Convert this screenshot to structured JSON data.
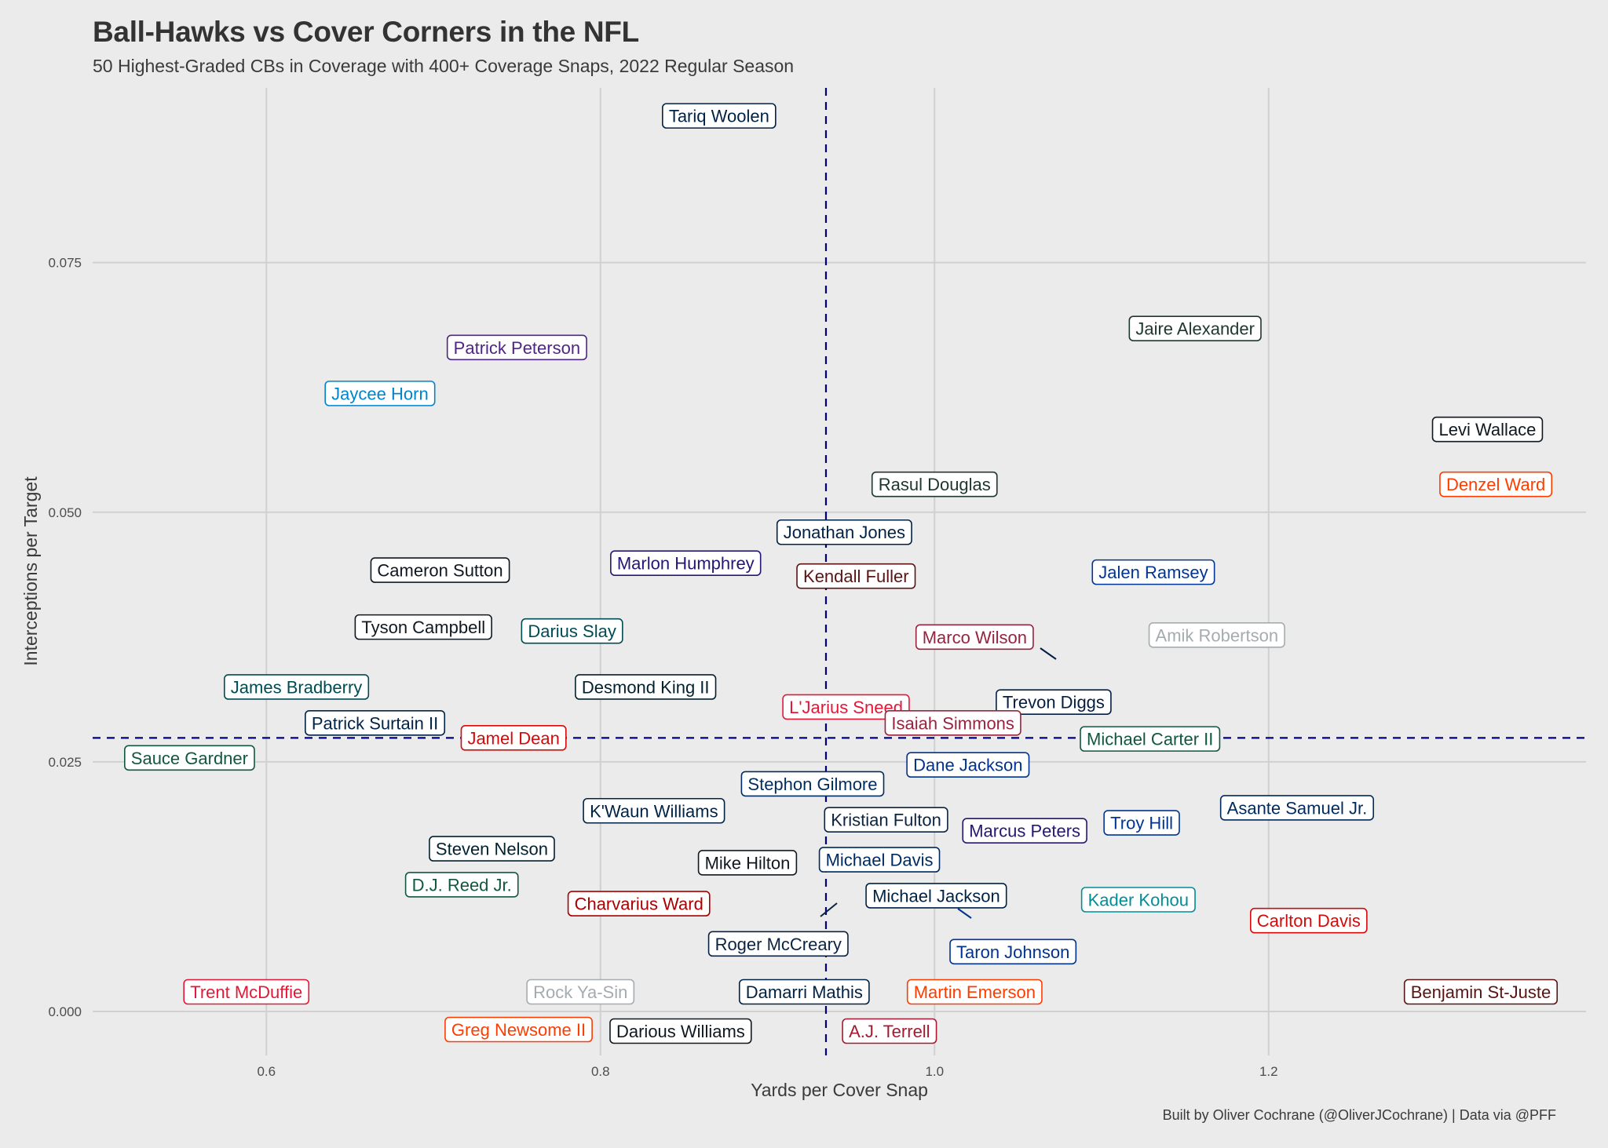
{
  "header": {
    "title": "Ball-Hawks vs Cover Corners in the NFL",
    "subtitle": "50 Highest-Graded CBs in Coverage with 400+ Coverage Snaps, 2022 Regular Season"
  },
  "footer": {
    "caption": "Built by Oliver Cochrane (@OliverJCochrane) | Data via @PFF"
  },
  "chart_data": {
    "type": "scatter",
    "title": "Ball-Hawks vs Cover Corners in the NFL",
    "subtitle": "50 Highest-Graded CBs in Coverage with 400+ Coverage Snaps, 2022 Regular Season",
    "xlabel": "Yards per Cover Snap",
    "ylabel": "Interceptions per Target",
    "xlim": [
      0.496,
      1.39
    ],
    "ylim": [
      -0.0044,
      0.0925
    ],
    "x_ticks": [
      0.6,
      0.8,
      1.0,
      1.2
    ],
    "x_tick_labels": [
      "0.6",
      "0.8",
      "1.0",
      "1.2"
    ],
    "y_ticks": [
      0.0,
      0.025,
      0.05,
      0.075
    ],
    "y_tick_labels": [
      "0.000",
      "0.025",
      "0.050",
      "0.075"
    ],
    "grid": true,
    "legend": "none",
    "reference_lines": {
      "x_mean": 0.935,
      "y_mean": 0.0274,
      "color": "#00007f",
      "style": "dashed"
    },
    "points": [
      {
        "name": "Tariq Woolen",
        "x": 0.871,
        "y": 0.0897,
        "color": "#002244"
      },
      {
        "name": "Jaire Alexander",
        "x": 1.156,
        "y": 0.0684,
        "color": "#203731"
      },
      {
        "name": "Patrick Peterson",
        "x": 0.75,
        "y": 0.0665,
        "color": "#4F2683"
      },
      {
        "name": "Jaycee Horn",
        "x": 0.668,
        "y": 0.0619,
        "color": "#0085CA"
      },
      {
        "name": "Levi Wallace",
        "x": 1.331,
        "y": 0.0583,
        "color": "#101820"
      },
      {
        "name": "Rasul Douglas",
        "x": 1.0,
        "y": 0.0528,
        "color": "#203731"
      },
      {
        "name": "Denzel Ward",
        "x": 1.336,
        "y": 0.0528,
        "color": "#FF3C00"
      },
      {
        "name": "Jonathan Jones",
        "x": 0.946,
        "y": 0.048,
        "color": "#002244"
      },
      {
        "name": "Marlon Humphrey",
        "x": 0.851,
        "y": 0.0449,
        "color": "#241773"
      },
      {
        "name": "Cameron Sutton",
        "x": 0.704,
        "y": 0.0442,
        "color": "#101820"
      },
      {
        "name": "Kendall Fuller",
        "x": 0.953,
        "y": 0.0436,
        "color": "#5A1414"
      },
      {
        "name": "Jalen Ramsey",
        "x": 1.131,
        "y": 0.044,
        "color": "#003594"
      },
      {
        "name": "Tyson Campbell",
        "x": 0.694,
        "y": 0.0385,
        "color": "#101820"
      },
      {
        "name": "Darius Slay",
        "x": 0.783,
        "y": 0.0381,
        "color": "#004C54"
      },
      {
        "name": "Marco Wilson",
        "x": 1.024,
        "y": 0.0375,
        "color": "#97233F"
      },
      {
        "name": "Amik Robertson",
        "x": 1.169,
        "y": 0.0377,
        "color": "#A5ACAF"
      },
      {
        "name": "Trevon Diggs",
        "x": 1.06,
        "y": 0.035,
        "color": "#041E42"
      },
      {
        "name": "James Bradberry",
        "x": 0.618,
        "y": 0.0325,
        "color": "#004C54"
      },
      {
        "name": "Desmond King II",
        "x": 0.827,
        "y": 0.0325,
        "color": "#03202F"
      },
      {
        "name": "L'Jarius Sneed",
        "x": 0.947,
        "y": 0.0305,
        "color": "#E31837"
      },
      {
        "name": "Patrick Surtain II",
        "x": 0.665,
        "y": 0.0289,
        "color": "#002244"
      },
      {
        "name": "Isaiah Simmons",
        "x": 1.011,
        "y": 0.0289,
        "color": "#97233F"
      },
      {
        "name": "Jamel Dean",
        "x": 0.748,
        "y": 0.0274,
        "color": "#D50A0A"
      },
      {
        "name": "Michael Carter II",
        "x": 1.129,
        "y": 0.0273,
        "color": "#125740"
      },
      {
        "name": "Sauce Gardner",
        "x": 0.554,
        "y": 0.0254,
        "color": "#125740"
      },
      {
        "name": "Dane Jackson",
        "x": 1.02,
        "y": 0.0247,
        "color": "#00338D"
      },
      {
        "name": "Stephon Gilmore",
        "x": 0.927,
        "y": 0.0228,
        "color": "#002C5F"
      },
      {
        "name": "K'Waun Williams",
        "x": 0.832,
        "y": 0.0201,
        "color": "#002244"
      },
      {
        "name": "Asante Samuel Jr.",
        "x": 1.217,
        "y": 0.0204,
        "color": "#002A5E"
      },
      {
        "name": "Kristian Fulton",
        "x": 0.971,
        "y": 0.0192,
        "color": "#0C2340"
      },
      {
        "name": "Troy Hill",
        "x": 1.124,
        "y": 0.0189,
        "color": "#003594"
      },
      {
        "name": "Marcus Peters",
        "x": 1.054,
        "y": 0.0181,
        "color": "#241773"
      },
      {
        "name": "Steven Nelson",
        "x": 0.735,
        "y": 0.0163,
        "color": "#03202F"
      },
      {
        "name": "Michael Davis",
        "x": 0.967,
        "y": 0.0152,
        "color": "#002A5E"
      },
      {
        "name": "Mike Hilton",
        "x": 0.888,
        "y": 0.0149,
        "color": "#101820"
      },
      {
        "name": "D.J. Reed Jr.",
        "x": 0.717,
        "y": 0.0127,
        "color": "#125740"
      },
      {
        "name": "Michael Jackson",
        "x": 1.001,
        "y": 0.0116,
        "color": "#002244"
      },
      {
        "name": "Kader Kohou",
        "x": 1.122,
        "y": 0.0112,
        "color": "#008E97"
      },
      {
        "name": "Charvarius Ward",
        "x": 0.823,
        "y": 0.0108,
        "color": "#AA0000"
      },
      {
        "name": "Carlton Davis",
        "x": 1.224,
        "y": 0.0091,
        "color": "#D50A0A"
      },
      {
        "name": "Roger McCreary",
        "x": 0.945,
        "y": 0.0107,
        "color": "#0C2340"
      },
      {
        "name": "Taron Johnson",
        "x": 1.015,
        "y": 0.01,
        "color": "#00338D"
      },
      {
        "name": "Trent McDuffie",
        "x": 0.588,
        "y": 0.0,
        "color": "#E31837"
      },
      {
        "name": "Rock Ya-Sin",
        "x": 0.788,
        "y": 0.0,
        "color": "#A5ACAF"
      },
      {
        "name": "Damarri Mathis",
        "x": 0.922,
        "y": 0.0,
        "color": "#002244"
      },
      {
        "name": "Martin Emerson",
        "x": 1.024,
        "y": 0.0,
        "color": "#FF3C00"
      },
      {
        "name": "Benjamin St-Juste",
        "x": 1.327,
        "y": 0.0,
        "color": "#5A1414"
      },
      {
        "name": "Greg Newsome II",
        "x": 0.751,
        "y": 0.0,
        "color": "#FF3C00"
      },
      {
        "name": "Darious Williams",
        "x": 0.848,
        "y": 0.0,
        "color": "#101820"
      },
      {
        "name": "A.J. Terrell",
        "x": 0.973,
        "y": 0.0,
        "color": "#A71930"
      }
    ]
  }
}
